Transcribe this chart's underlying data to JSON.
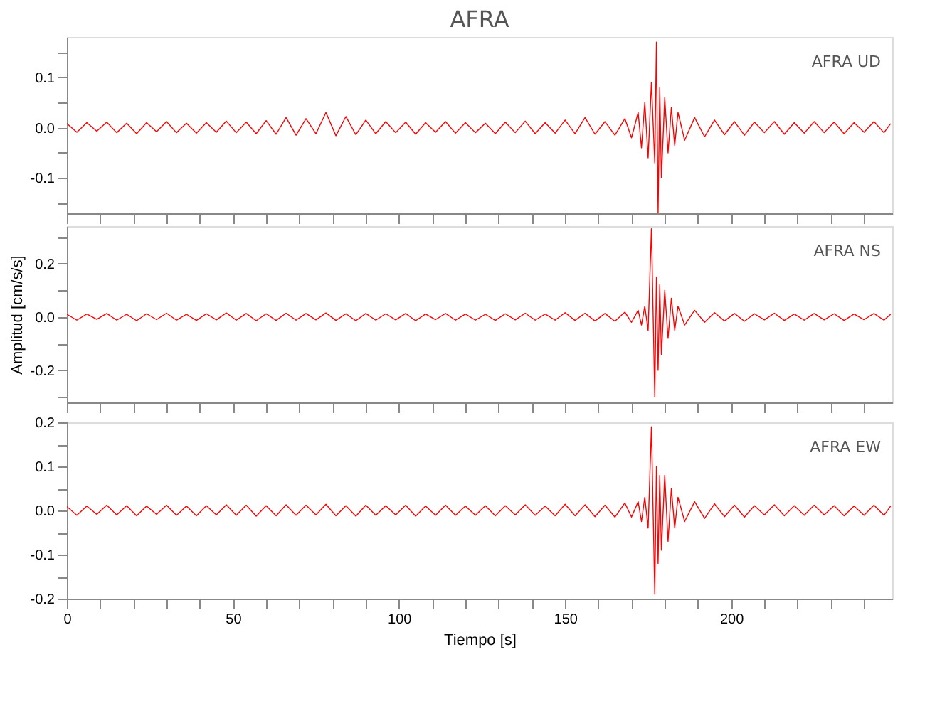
{
  "chart_data": [
    {
      "type": "line",
      "title": "AFRA",
      "annotations": [
        "AFRA   UD"
      ],
      "xlim": [
        0,
        248.5
      ],
      "ylim": [
        -0.17,
        0.18
      ],
      "tick_labels": "y",
      "grid": false,
      "xticks": [
        0,
        {
          "value": 10,
          "label": null
        },
        {
          "value": 20,
          "label": null
        },
        {
          "value": 30,
          "label": null
        },
        {
          "value": 40,
          "label": null
        },
        50,
        {
          "value": 60,
          "label": null
        },
        {
          "value": 70,
          "label": null
        },
        {
          "value": 80,
          "label": null
        },
        {
          "value": 90,
          "label": null
        },
        100,
        {
          "value": 110,
          "label": null
        },
        {
          "value": 120,
          "label": null
        },
        {
          "value": 130,
          "label": null
        },
        {
          "value": 140,
          "label": null
        },
        150,
        {
          "value": 160,
          "label": null
        },
        {
          "value": 170,
          "label": null
        },
        {
          "value": 180,
          "label": null
        },
        {
          "value": 190,
          "label": null
        },
        200,
        {
          "value": 210,
          "label": null
        },
        {
          "value": 220,
          "label": null
        },
        {
          "value": 230,
          "label": null
        },
        {
          "value": 240,
          "label": null
        }
      ],
      "yticks": [
        {
          "value": -0.15,
          "label": null
        },
        -0.1,
        {
          "value": -0.05,
          "label": null
        },
        {
          "value": 0,
          "label": "0.0"
        },
        {
          "value": 0.05,
          "label": null
        },
        0.1,
        {
          "value": 0.15,
          "label": null
        }
      ],
      "series": [
        {
          "color": "#ff0000",
          "x": [
            0,
            3,
            6,
            9,
            12,
            15,
            18,
            21,
            24,
            27,
            30,
            33,
            36,
            39,
            42,
            45,
            48,
            51,
            54,
            57,
            60,
            63,
            66,
            69,
            72,
            75,
            78,
            81,
            84,
            87,
            90,
            93,
            96,
            99,
            102,
            105,
            108,
            111,
            114,
            117,
            120,
            123,
            126,
            129,
            132,
            135,
            138,
            141,
            144,
            147,
            150,
            153,
            156,
            159,
            162,
            165,
            168,
            170,
            172,
            173,
            174,
            175,
            176,
            177,
            177.5,
            178,
            178.5,
            179,
            180,
            181,
            182,
            183,
            184,
            186,
            189,
            192,
            195,
            198,
            201,
            204,
            207,
            210,
            213,
            216,
            219,
            222,
            225,
            228,
            231,
            234,
            237,
            240,
            243,
            246,
            248
          ],
          "values": [
            0.008,
            -0.009,
            0.01,
            -0.007,
            0.011,
            -0.01,
            0.009,
            -0.012,
            0.01,
            -0.008,
            0.012,
            -0.01,
            0.009,
            -0.011,
            0.01,
            -0.009,
            0.013,
            -0.01,
            0.011,
            -0.012,
            0.014,
            -0.013,
            0.02,
            -0.015,
            0.018,
            -0.012,
            0.03,
            -0.016,
            0.022,
            -0.014,
            0.015,
            -0.012,
            0.012,
            -0.01,
            0.011,
            -0.013,
            0.01,
            -0.009,
            0.012,
            -0.011,
            0.01,
            -0.01,
            0.009,
            -0.012,
            0.011,
            -0.01,
            0.013,
            -0.012,
            0.01,
            -0.011,
            0.015,
            -0.012,
            0.02,
            -0.013,
            0.012,
            -0.015,
            0.018,
            -0.02,
            0.03,
            -0.04,
            0.05,
            -0.06,
            0.09,
            -0.07,
            0.17,
            -0.17,
            0.08,
            -0.1,
            0.06,
            -0.05,
            0.04,
            -0.035,
            0.03,
            -0.025,
            0.02,
            -0.018,
            0.015,
            -0.014,
            0.012,
            -0.015,
            0.011,
            -0.01,
            0.012,
            -0.013,
            0.01,
            -0.011,
            0.012,
            -0.01,
            0.011,
            -0.012,
            0.01,
            -0.009,
            0.012,
            -0.01,
            0.008
          ]
        }
      ]
    },
    {
      "type": "line",
      "ylabel": "Amplitud [cm/s/s]",
      "annotations": [
        "AFRA   NS"
      ],
      "xlim": [
        0,
        248.5
      ],
      "ylim": [
        -0.32,
        0.34
      ],
      "tick_labels": "y",
      "grid": false,
      "xticks": [
        0,
        {
          "value": 10,
          "label": null
        },
        {
          "value": 20,
          "label": null
        },
        {
          "value": 30,
          "label": null
        },
        {
          "value": 40,
          "label": null
        },
        50,
        {
          "value": 60,
          "label": null
        },
        {
          "value": 70,
          "label": null
        },
        {
          "value": 80,
          "label": null
        },
        {
          "value": 90,
          "label": null
        },
        100,
        {
          "value": 110,
          "label": null
        },
        {
          "value": 120,
          "label": null
        },
        {
          "value": 130,
          "label": null
        },
        {
          "value": 140,
          "label": null
        },
        150,
        {
          "value": 160,
          "label": null
        },
        {
          "value": 170,
          "label": null
        },
        {
          "value": 180,
          "label": null
        },
        {
          "value": 190,
          "label": null
        },
        200,
        {
          "value": 210,
          "label": null
        },
        {
          "value": 220,
          "label": null
        },
        {
          "value": 230,
          "label": null
        },
        {
          "value": 240,
          "label": null
        }
      ],
      "yticks": [
        {
          "value": -0.3,
          "label": null
        },
        -0.2,
        {
          "value": -0.1,
          "label": null
        },
        {
          "value": 0,
          "label": "0.0"
        },
        {
          "value": 0.1,
          "label": null
        },
        0.2,
        {
          "value": 0.3,
          "label": null
        }
      ],
      "series": [
        {
          "color": "#ff0000",
          "x": [
            0,
            3,
            6,
            9,
            12,
            15,
            18,
            21,
            24,
            27,
            30,
            33,
            36,
            39,
            42,
            45,
            48,
            51,
            54,
            57,
            60,
            63,
            66,
            69,
            72,
            75,
            78,
            81,
            84,
            87,
            90,
            93,
            96,
            99,
            102,
            105,
            108,
            111,
            114,
            117,
            120,
            123,
            126,
            129,
            132,
            135,
            138,
            141,
            144,
            147,
            150,
            153,
            156,
            159,
            162,
            165,
            168,
            170,
            172,
            173,
            174,
            175,
            176,
            177,
            177.5,
            178,
            178.5,
            179,
            180,
            181,
            182,
            183,
            184,
            186,
            189,
            192,
            195,
            198,
            201,
            204,
            207,
            210,
            213,
            216,
            219,
            222,
            225,
            228,
            231,
            234,
            237,
            240,
            243,
            246,
            248
          ],
          "values": [
            0.01,
            -0.012,
            0.011,
            -0.009,
            0.013,
            -0.012,
            0.01,
            -0.014,
            0.012,
            -0.01,
            0.014,
            -0.012,
            0.01,
            -0.013,
            0.012,
            -0.011,
            0.015,
            -0.012,
            0.013,
            -0.014,
            0.012,
            -0.013,
            0.014,
            -0.012,
            0.013,
            -0.011,
            0.015,
            -0.013,
            0.012,
            -0.014,
            0.013,
            -0.012,
            0.012,
            -0.011,
            0.013,
            -0.014,
            0.011,
            -0.01,
            0.013,
            -0.012,
            0.011,
            -0.012,
            0.01,
            -0.013,
            0.012,
            -0.011,
            0.014,
            -0.012,
            0.011,
            -0.012,
            0.016,
            -0.013,
            0.014,
            -0.015,
            0.013,
            -0.016,
            0.018,
            -0.02,
            0.025,
            -0.03,
            0.04,
            -0.05,
            0.33,
            -0.3,
            0.15,
            -0.2,
            0.12,
            -0.14,
            0.1,
            -0.08,
            0.07,
            -0.05,
            0.04,
            -0.03,
            0.025,
            -0.02,
            0.016,
            -0.015,
            0.013,
            -0.016,
            0.012,
            -0.011,
            0.014,
            -0.013,
            0.011,
            -0.012,
            0.013,
            -0.011,
            0.012,
            -0.013,
            0.011,
            -0.01,
            0.013,
            -0.012,
            0.01
          ]
        }
      ]
    },
    {
      "type": "line",
      "xlabel": "Tiempo [s]",
      "annotations": [
        "AFRA   EW"
      ],
      "xlim": [
        0,
        248.5
      ],
      "ylim": [
        -0.2,
        0.2
      ],
      "grid": false,
      "xticks": [
        0,
        {
          "value": 10,
          "label": null
        },
        {
          "value": 20,
          "label": null
        },
        {
          "value": 30,
          "label": null
        },
        {
          "value": 40,
          "label": null
        },
        50,
        {
          "value": 60,
          "label": null
        },
        {
          "value": 70,
          "label": null
        },
        {
          "value": 80,
          "label": null
        },
        {
          "value": 90,
          "label": null
        },
        100,
        {
          "value": 110,
          "label": null
        },
        {
          "value": 120,
          "label": null
        },
        {
          "value": 130,
          "label": null
        },
        {
          "value": 140,
          "label": null
        },
        150,
        {
          "value": 160,
          "label": null
        },
        {
          "value": 170,
          "label": null
        },
        {
          "value": 180,
          "label": null
        },
        {
          "value": 190,
          "label": null
        },
        200,
        {
          "value": 210,
          "label": null
        },
        {
          "value": 220,
          "label": null
        },
        {
          "value": 230,
          "label": null
        },
        {
          "value": 240,
          "label": null
        }
      ],
      "yticks": [
        -0.2,
        {
          "value": -0.15,
          "label": null
        },
        -0.1,
        {
          "value": -0.05,
          "label": null
        },
        {
          "value": 0,
          "label": "0.0"
        },
        {
          "value": 0.05,
          "label": null
        },
        0.1,
        {
          "value": 0.15,
          "label": null
        },
        0.2
      ],
      "series": [
        {
          "color": "#ff0000",
          "x": [
            0,
            3,
            6,
            9,
            12,
            15,
            18,
            21,
            24,
            27,
            30,
            33,
            36,
            39,
            42,
            45,
            48,
            51,
            54,
            57,
            60,
            63,
            66,
            69,
            72,
            75,
            78,
            81,
            84,
            87,
            90,
            93,
            96,
            99,
            102,
            105,
            108,
            111,
            114,
            117,
            120,
            123,
            126,
            129,
            132,
            135,
            138,
            141,
            144,
            147,
            150,
            153,
            156,
            159,
            162,
            165,
            168,
            170,
            172,
            173,
            174,
            175,
            176,
            177,
            177.5,
            178,
            178.5,
            179,
            180,
            181,
            182,
            183,
            184,
            186,
            189,
            192,
            195,
            198,
            201,
            204,
            207,
            210,
            213,
            216,
            219,
            222,
            225,
            228,
            231,
            234,
            237,
            240,
            243,
            246,
            248
          ],
          "values": [
            0.009,
            -0.011,
            0.01,
            -0.009,
            0.012,
            -0.01,
            0.011,
            -0.012,
            0.01,
            -0.009,
            0.012,
            -0.011,
            0.01,
            -0.012,
            0.011,
            -0.01,
            0.013,
            -0.011,
            0.012,
            -0.013,
            0.011,
            -0.012,
            0.013,
            -0.011,
            0.012,
            -0.01,
            0.014,
            -0.012,
            0.011,
            -0.013,
            0.012,
            -0.011,
            0.011,
            -0.01,
            0.012,
            -0.013,
            0.01,
            -0.011,
            0.012,
            -0.011,
            0.01,
            -0.011,
            0.011,
            -0.012,
            0.011,
            -0.01,
            0.013,
            -0.011,
            0.01,
            -0.012,
            0.014,
            -0.012,
            0.013,
            -0.014,
            0.012,
            -0.015,
            0.017,
            -0.015,
            0.02,
            -0.025,
            0.03,
            -0.04,
            0.19,
            -0.19,
            0.1,
            -0.12,
            0.08,
            -0.09,
            0.08,
            -0.07,
            0.05,
            -0.04,
            0.03,
            -0.025,
            0.02,
            -0.018,
            0.015,
            -0.014,
            0.012,
            -0.015,
            0.011,
            -0.01,
            0.013,
            -0.012,
            0.011,
            -0.011,
            0.012,
            -0.01,
            0.011,
            -0.012,
            0.01,
            -0.011,
            0.012,
            -0.011,
            0.01
          ]
        }
      ]
    }
  ]
}
